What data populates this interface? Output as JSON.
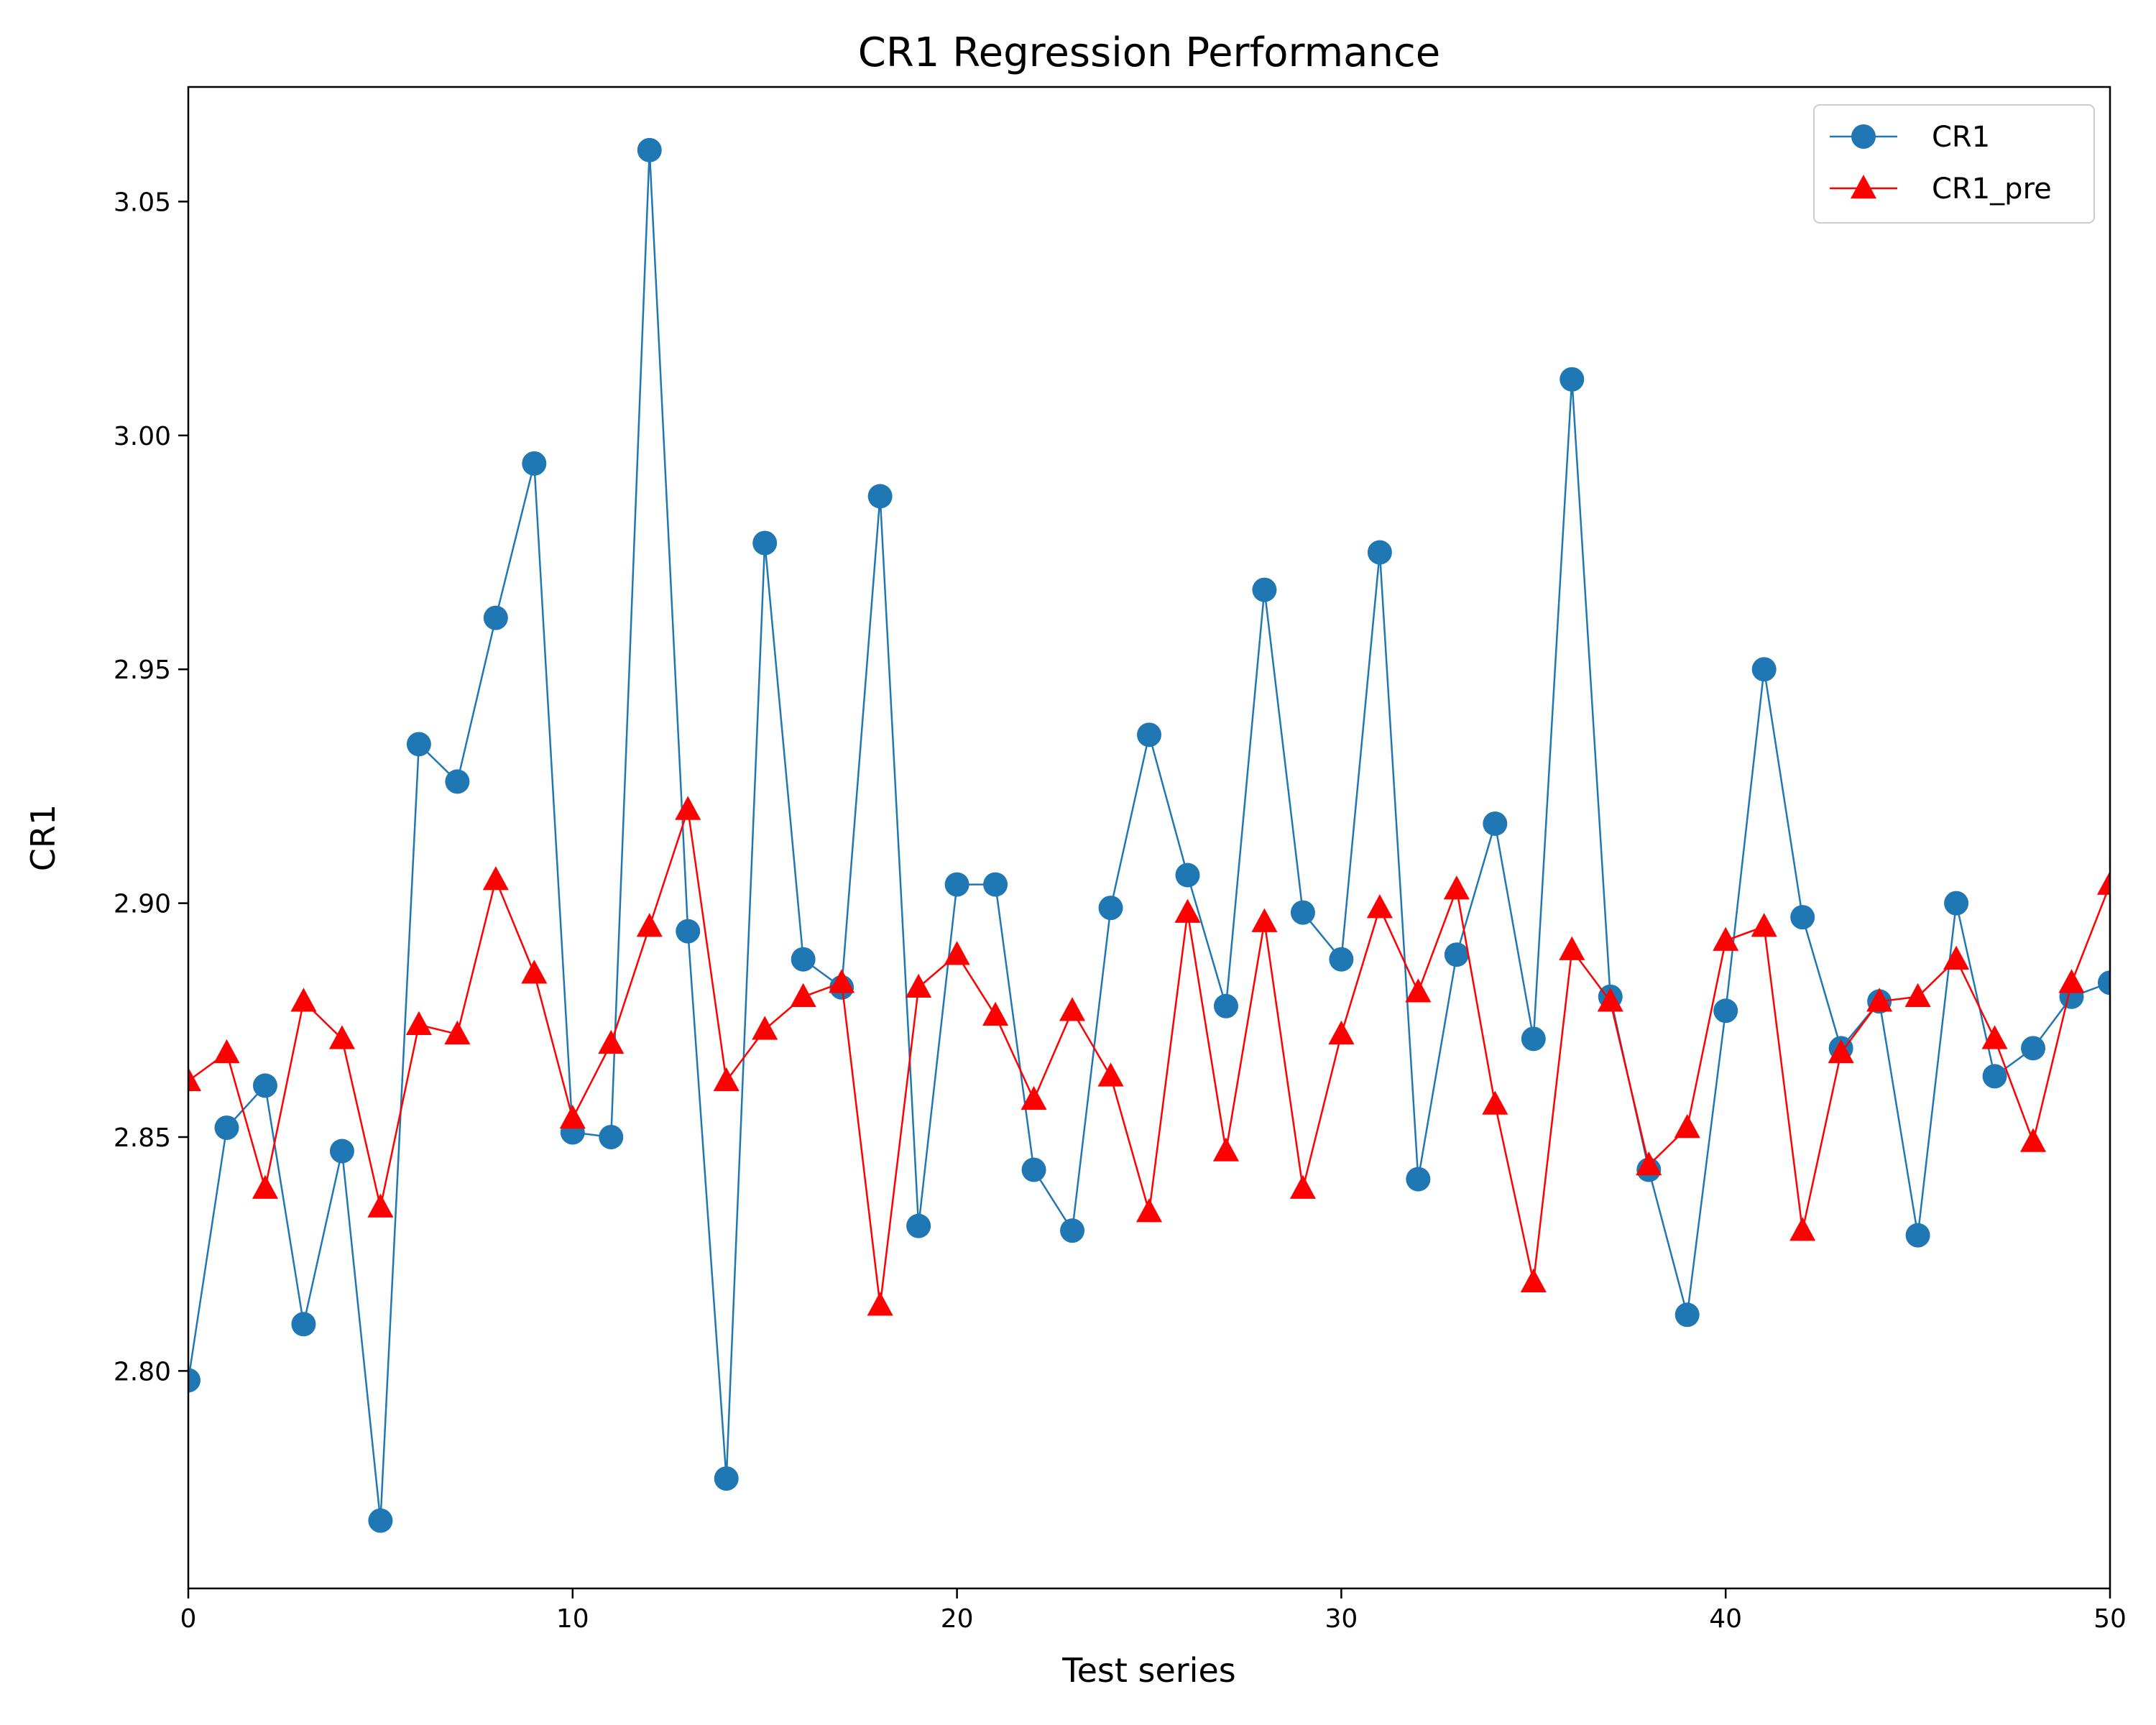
{
  "chart_data": {
    "type": "line",
    "title": "CR1 Regression Performance",
    "xlabel": "Test series",
    "ylabel": "CR1",
    "xlim": [
      0,
      50
    ],
    "ylim": [
      2.7535,
      3.0745
    ],
    "xticks": [
      0,
      10,
      20,
      30,
      40,
      50
    ],
    "yticks": [
      2.8,
      2.85,
      2.9,
      2.95,
      3.0,
      3.05
    ],
    "grid": false,
    "legend_position": "top-right",
    "x": [
      0,
      1,
      2,
      3,
      4,
      5,
      6,
      7,
      8,
      9,
      10,
      11,
      12,
      13,
      14,
      15,
      16,
      17,
      18,
      19,
      20,
      21,
      22,
      23,
      24,
      25,
      26,
      27,
      28,
      29,
      30,
      31,
      32,
      33,
      34,
      35,
      36,
      37,
      38,
      39,
      40,
      41,
      42,
      43,
      44,
      45,
      46,
      47,
      48,
      49,
      50
    ],
    "series": [
      {
        "name": "CR1",
        "color": "#1f77b4",
        "marker": "circle",
        "values": [
          2.798,
          2.852,
          2.861,
          2.81,
          2.847,
          2.768,
          2.934,
          2.926,
          2.961,
          2.994,
          2.851,
          2.85,
          3.061,
          2.894,
          2.777,
          2.977,
          2.888,
          2.882,
          2.987,
          2.831,
          2.904,
          2.904,
          2.843,
          2.83,
          2.899,
          2.936,
          2.906,
          2.878,
          2.967,
          2.898,
          2.888,
          2.975,
          2.841,
          2.889,
          2.917,
          2.871,
          3.012,
          2.88,
          2.843,
          2.812,
          2.877,
          2.95,
          2.897,
          2.869,
          2.879,
          2.829,
          2.9,
          2.863,
          2.869,
          2.88,
          2.883
        ]
      },
      {
        "name": "CR1_pre",
        "color": "#ff0000",
        "marker": "triangle",
        "values": [
          2.862,
          2.868,
          2.839,
          2.879,
          2.871,
          2.835,
          2.874,
          2.872,
          2.905,
          2.885,
          2.854,
          2.87,
          2.895,
          2.92,
          2.862,
          2.873,
          2.88,
          2.883,
          2.814,
          2.882,
          2.889,
          2.876,
          2.858,
          2.877,
          2.863,
          2.834,
          2.898,
          2.847,
          2.896,
          2.839,
          2.872,
          2.899,
          2.881,
          2.903,
          2.857,
          2.819,
          2.89,
          2.879,
          2.844,
          2.852,
          2.892,
          2.895,
          2.83,
          2.868,
          2.879,
          2.88,
          2.888,
          2.871,
          2.849,
          2.883,
          2.904
        ]
      }
    ]
  }
}
